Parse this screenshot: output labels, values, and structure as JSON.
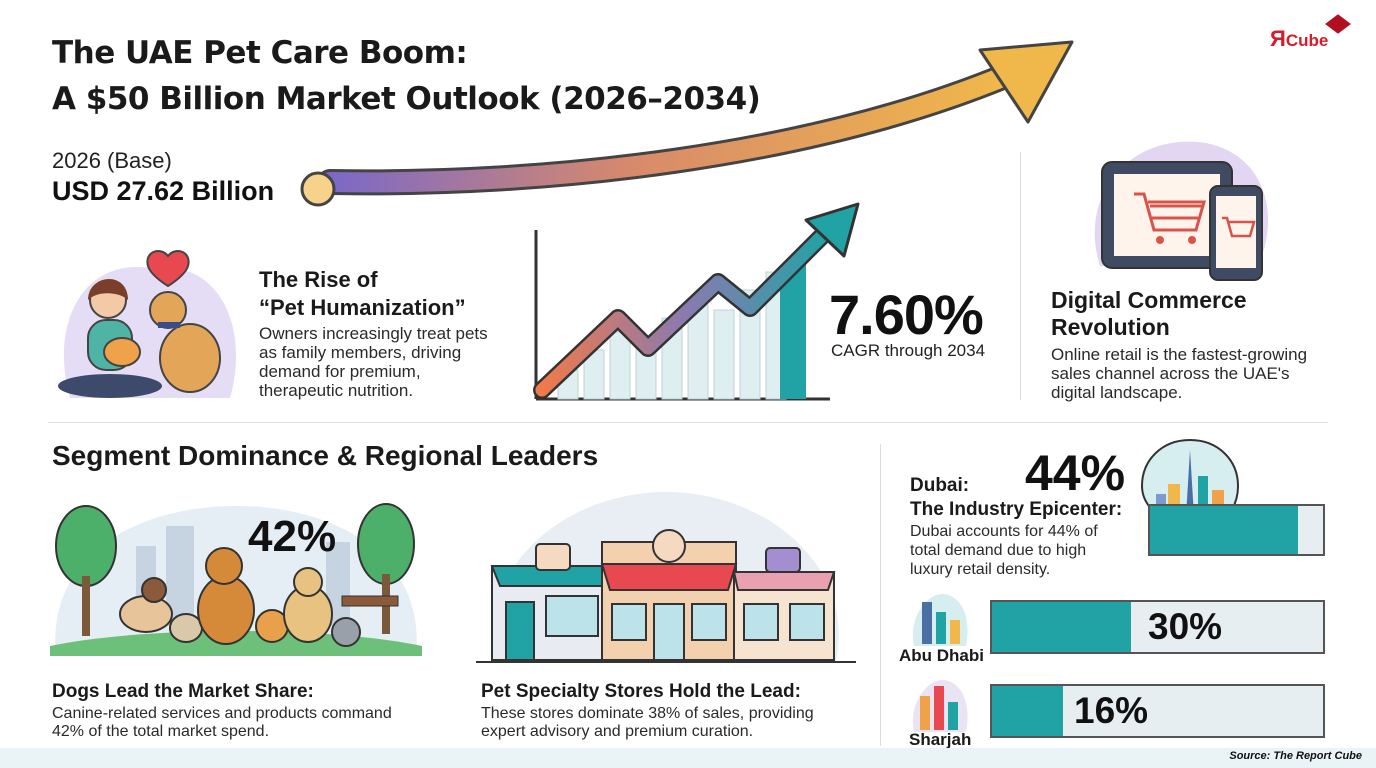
{
  "header": {
    "title_line1": "The UAE Pet Care Boom:",
    "title_line2": "A $50 Billion Market Outlook (2026–2034)",
    "logo_r": "Я",
    "logo_text": "Cube"
  },
  "base": {
    "label": "2026 (Base)",
    "value": "USD 27.62 Billion"
  },
  "humanization": {
    "title_line1": "The Rise of",
    "title_line2": "“Pet Humanization”",
    "body_line1": "Owners increasingly treat pets",
    "body_line2": "as family members, driving",
    "body_line3": "demand for premium,",
    "body_line4": "therapeutic nutrition."
  },
  "cagr": {
    "value": "7.60%",
    "label": "CAGR through 2034"
  },
  "digital": {
    "title_line1": "Digital Commerce",
    "title_line2": "Revolution",
    "body_line1": "Online retail is the fastest-growing",
    "body_line2": "sales channel across the UAE's",
    "body_line3": "digital landscape."
  },
  "segment": {
    "heading": "Segment Dominance & Regional Leaders"
  },
  "dogs": {
    "pct": "42%",
    "title": "Dogs Lead the Market Share:",
    "body_line1": "Canine-related services and products command",
    "body_line2": "42% of the total market spend."
  },
  "stores": {
    "title": "Pet Specialty Stores Hold the Lead:",
    "body_line1": "These stores dominate 38% of sales, providing",
    "body_line2": "expert advisory and premium curation."
  },
  "regions": {
    "dubai": {
      "title_line1": "Dubai:",
      "title_line2": "The Industry Epicenter:",
      "pct": "44%",
      "share": 44,
      "body_line1": "Dubai accounts for 44% of",
      "body_line2": "total demand due to high",
      "body_line3": "luxury retail density."
    },
    "abu_dhabi": {
      "name": "Abu Dhabi",
      "pct": "30%",
      "share": 30
    },
    "sharjah": {
      "name": "Sharjah",
      "pct": "16%",
      "share": 16
    }
  },
  "source": "Source: The Report Cube",
  "colors": {
    "teal": "#21a3a5",
    "accent_orange": "#f0a24a",
    "accent_purple": "#7b68c8",
    "heart": "#e8484f"
  }
}
